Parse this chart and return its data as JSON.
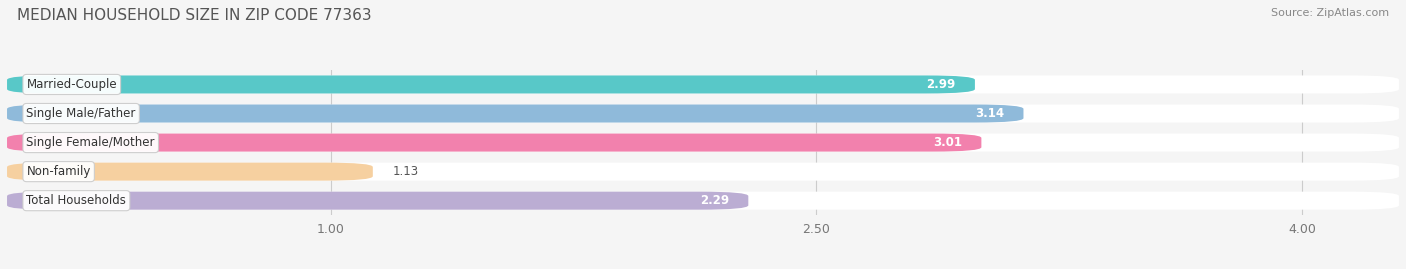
{
  "title": "MEDIAN HOUSEHOLD SIZE IN ZIP CODE 77363",
  "source": "Source: ZipAtlas.com",
  "categories": [
    "Married-Couple",
    "Single Male/Father",
    "Single Female/Mother",
    "Non-family",
    "Total Households"
  ],
  "values": [
    2.99,
    3.14,
    3.01,
    1.13,
    2.29
  ],
  "bar_colors": [
    "#3bbfbf",
    "#7baed4",
    "#f06b9f",
    "#f5c890",
    "#b09fcc"
  ],
  "xmin": 0.0,
  "xmax": 4.3,
  "xticks": [
    1.0,
    2.5,
    4.0
  ],
  "xtick_labels": [
    "1.00",
    "2.50",
    "4.00"
  ],
  "title_fontsize": 11,
  "source_fontsize": 8,
  "label_fontsize": 8.5,
  "value_fontsize": 8.5,
  "background_color": "#f5f5f5",
  "track_color": "#e8e8e8",
  "bar_height": 0.62,
  "bar_gap": 0.38
}
